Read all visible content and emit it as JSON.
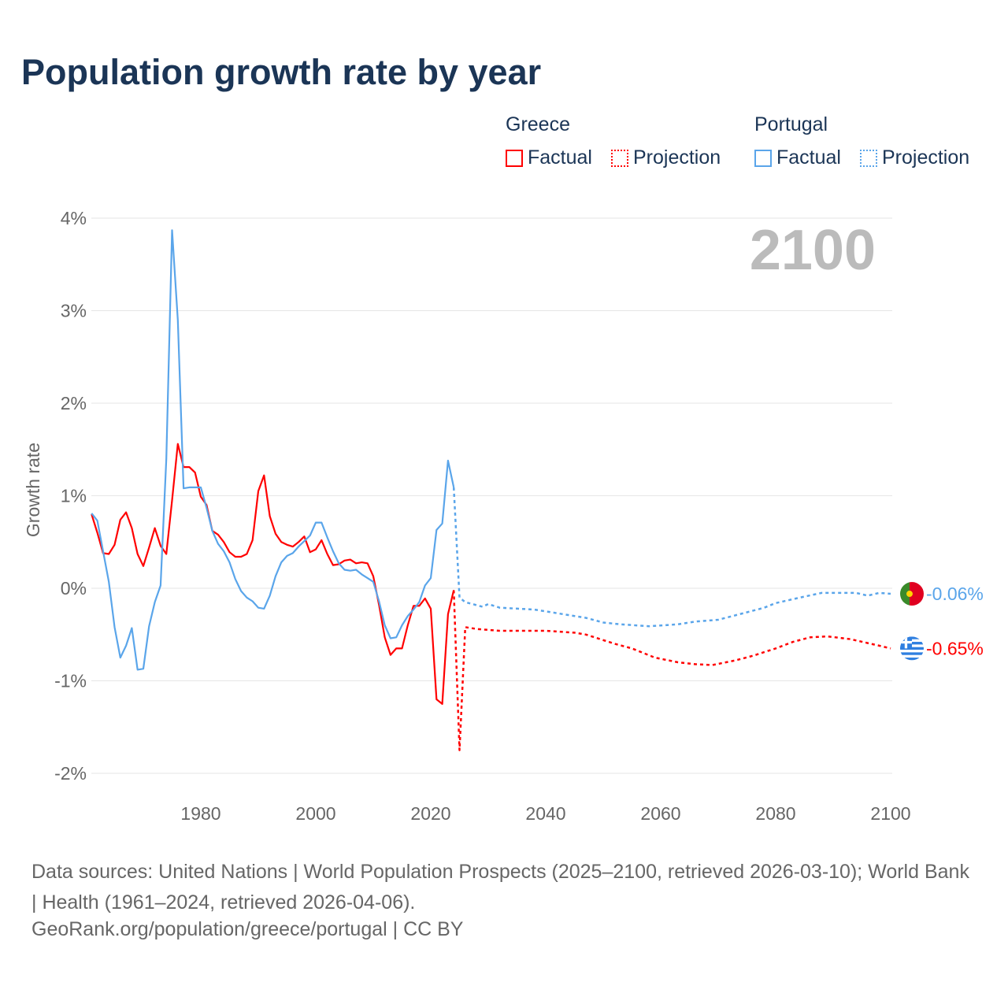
{
  "title": "Population growth rate by year",
  "legend": {
    "greece": {
      "label": "Greece",
      "factual": "Factual",
      "projection": "Projection",
      "color": "#ff0000"
    },
    "portugal": {
      "label": "Portugal",
      "factual": "Factual",
      "projection": "Projection",
      "color": "#5aa5ea"
    }
  },
  "year_label": "2100",
  "source_line": "Data sources: United Nations | World Population Prospects (2025–2100, retrieved 2026-03-10); World Bank | Health (1961–2024, retrieved 2026-04-06).",
  "credit_line": "GeoRank.org/population/greece/portugal | CC BY",
  "chart_data": {
    "type": "line",
    "title": "Population growth rate by year",
    "ylabel": "Growth rate",
    "xlabel": "",
    "xlim": [
      1961,
      2100
    ],
    "ylim": [
      -2,
      4
    ],
    "x_ticks": [
      "1980",
      "2000",
      "2020",
      "2040",
      "2060",
      "2080",
      "2100"
    ],
    "y_ticks": [
      "4%",
      "3%",
      "2%",
      "1%",
      "0%",
      "-1%",
      "-2%"
    ],
    "end_labels": {
      "portugal": "-0.06%",
      "greece": "-0.65%"
    },
    "series": [
      {
        "name": "Greece Factual",
        "color": "#ff0000",
        "dashed": false,
        "start": 1961,
        "values": [
          0.8,
          0.6,
          0.38,
          0.37,
          0.47,
          0.74,
          0.82,
          0.65,
          0.37,
          0.24,
          0.44,
          0.65,
          0.46,
          0.37,
          0.95,
          1.56,
          1.31,
          1.31,
          1.25,
          0.99,
          0.9,
          0.62,
          0.58,
          0.5,
          0.39,
          0.34,
          0.34,
          0.37,
          0.52,
          1.05,
          1.22,
          0.78,
          0.59,
          0.5,
          0.47,
          0.45,
          0.5,
          0.56,
          0.39,
          0.42,
          0.52,
          0.37,
          0.25,
          0.26,
          0.3,
          0.31,
          0.27,
          0.28,
          0.27,
          0.13,
          -0.18,
          -0.53,
          -0.72,
          -0.65,
          -0.65,
          -0.4,
          -0.19,
          -0.19,
          -0.11,
          -0.22,
          -1.2,
          -1.25,
          -0.28,
          -0.02
        ]
      },
      {
        "name": "Greece Projection",
        "color": "#ff0000",
        "dashed": true,
        "points": [
          [
            2024,
            -0.02
          ],
          [
            2025,
            -1.75
          ],
          [
            2026,
            -0.42
          ],
          [
            2028,
            -0.44
          ],
          [
            2032,
            -0.46
          ],
          [
            2040,
            -0.46
          ],
          [
            2045,
            -0.48
          ],
          [
            2047,
            -0.5
          ],
          [
            2052,
            -0.6
          ],
          [
            2055,
            -0.65
          ],
          [
            2059,
            -0.75
          ],
          [
            2063,
            -0.8
          ],
          [
            2066,
            -0.82
          ],
          [
            2069,
            -0.83
          ],
          [
            2073,
            -0.78
          ],
          [
            2076,
            -0.73
          ],
          [
            2080,
            -0.65
          ],
          [
            2083,
            -0.58
          ],
          [
            2086,
            -0.53
          ],
          [
            2089,
            -0.52
          ],
          [
            2093,
            -0.55
          ],
          [
            2098,
            -0.62
          ],
          [
            2100,
            -0.65
          ]
        ]
      },
      {
        "name": "Portugal Factual",
        "color": "#5aa5ea",
        "dashed": false,
        "start": 1961,
        "values": [
          0.81,
          0.73,
          0.4,
          0.07,
          -0.42,
          -0.75,
          -0.62,
          -0.43,
          -0.88,
          -0.87,
          -0.41,
          -0.15,
          0.03,
          1.4,
          3.87,
          2.9,
          1.08,
          1.09,
          1.09,
          1.09,
          0.87,
          0.62,
          0.48,
          0.4,
          0.28,
          0.1,
          -0.03,
          -0.1,
          -0.14,
          -0.21,
          -0.22,
          -0.08,
          0.13,
          0.28,
          0.35,
          0.38,
          0.45,
          0.51,
          0.57,
          0.71,
          0.71,
          0.55,
          0.4,
          0.27,
          0.2,
          0.19,
          0.2,
          0.15,
          0.11,
          0.07,
          -0.14,
          -0.4,
          -0.54,
          -0.53,
          -0.4,
          -0.3,
          -0.23,
          -0.15,
          0.03,
          0.11,
          0.63,
          0.7,
          1.38,
          1.09
        ]
      },
      {
        "name": "Portugal Projection",
        "color": "#5aa5ea",
        "dashed": true,
        "points": [
          [
            2024,
            1.09
          ],
          [
            2025,
            -0.1
          ],
          [
            2026,
            -0.15
          ],
          [
            2029,
            -0.2
          ],
          [
            2030,
            -0.17
          ],
          [
            2032,
            -0.21
          ],
          [
            2038,
            -0.23
          ],
          [
            2042,
            -0.27
          ],
          [
            2047,
            -0.32
          ],
          [
            2050,
            -0.37
          ],
          [
            2053,
            -0.39
          ],
          [
            2058,
            -0.41
          ],
          [
            2063,
            -0.39
          ],
          [
            2066,
            -0.36
          ],
          [
            2070,
            -0.34
          ],
          [
            2075,
            -0.26
          ],
          [
            2078,
            -0.21
          ],
          [
            2080,
            -0.16
          ],
          [
            2085,
            -0.09
          ],
          [
            2088,
            -0.05
          ],
          [
            2094,
            -0.05
          ],
          [
            2096,
            -0.08
          ],
          [
            2098,
            -0.05
          ],
          [
            2100,
            -0.06
          ]
        ]
      }
    ]
  }
}
